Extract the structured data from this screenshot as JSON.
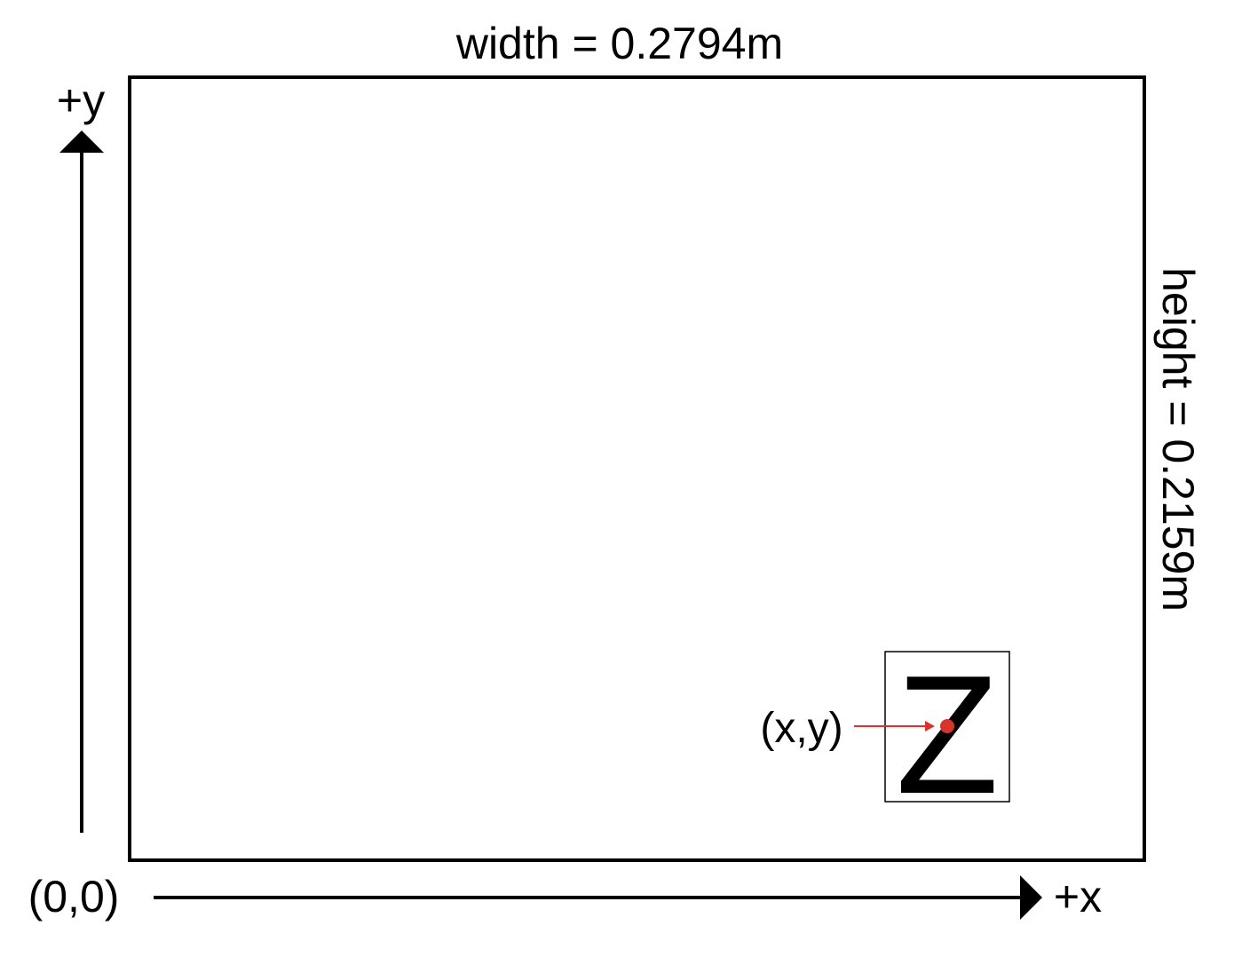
{
  "labels": {
    "width": "width = 0.2794m",
    "height": "height = 0.2159m",
    "y_axis": "+y",
    "x_axis": "+x",
    "origin": "(0,0)",
    "point": "(x,y)",
    "marker_letter": "Z"
  },
  "colors": {
    "stroke": "#000000",
    "pointer": "#d9342b"
  },
  "icons": {
    "y_arrow": "arrow-up-icon",
    "x_arrow": "arrow-right-icon"
  }
}
